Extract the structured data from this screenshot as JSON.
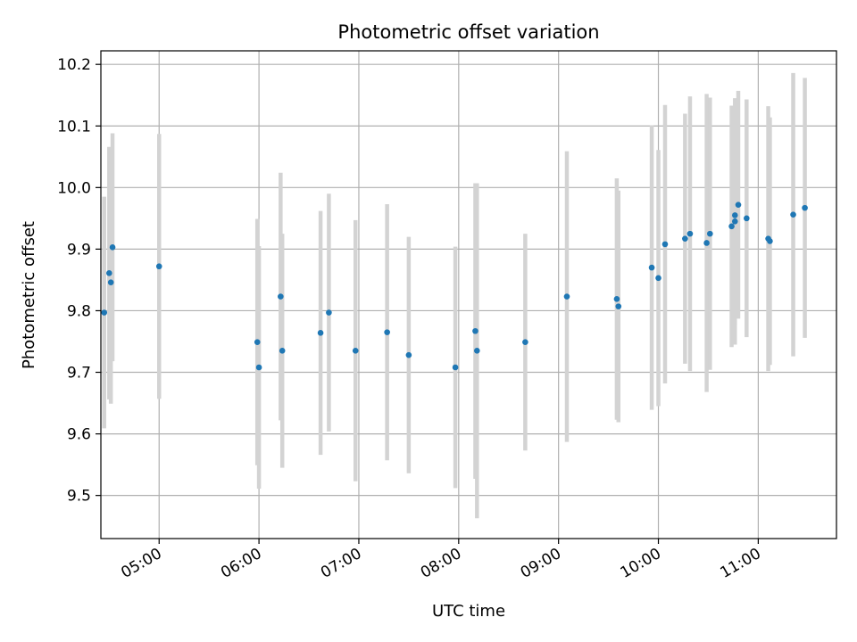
{
  "chart_data": {
    "type": "scatter",
    "title": "Photometric offset variation",
    "xlabel": "UTC time",
    "ylabel": "Photometric offset",
    "x_tick_labels": [
      "05:00",
      "06:00",
      "07:00",
      "08:00",
      "09:00",
      "10:00",
      "11:00"
    ],
    "y_tick_labels": [
      "9.5",
      "9.6",
      "9.7",
      "9.8",
      "9.9",
      "10.0",
      "10.1",
      "10.2"
    ],
    "y_ticks": [
      9.5,
      9.6,
      9.7,
      9.8,
      9.9,
      10.0,
      10.1,
      10.2
    ],
    "xlim": [
      "04:25",
      "11:47"
    ],
    "ylim": [
      9.43,
      10.222
    ],
    "grid": true,
    "colors": {
      "point": "#1f77b4",
      "error_bar": "#d3d3d3",
      "grid": "#b0b0b0"
    },
    "points": [
      {
        "x": "04:27",
        "y": 9.797,
        "err": 0.188
      },
      {
        "x": "04:30",
        "y": 9.861,
        "err": 0.205
      },
      {
        "x": "04:31",
        "y": 9.846,
        "err": 0.197
      },
      {
        "x": "04:32",
        "y": 9.903,
        "err": 0.185
      },
      {
        "x": "05:00",
        "y": 9.872,
        "err": 0.215
      },
      {
        "x": "05:59",
        "y": 9.749,
        "err": 0.2
      },
      {
        "x": "06:00",
        "y": 9.708,
        "err": 0.197
      },
      {
        "x": "06:13",
        "y": 9.823,
        "err": 0.201
      },
      {
        "x": "06:14",
        "y": 9.735,
        "err": 0.19
      },
      {
        "x": "06:37",
        "y": 9.764,
        "err": 0.198
      },
      {
        "x": "06:42",
        "y": 9.797,
        "err": 0.193
      },
      {
        "x": "06:58",
        "y": 9.735,
        "err": 0.212
      },
      {
        "x": "07:17",
        "y": 9.765,
        "err": 0.208
      },
      {
        "x": "07:30",
        "y": 9.728,
        "err": 0.192
      },
      {
        "x": "07:58",
        "y": 9.708,
        "err": 0.196
      },
      {
        "x": "08:10",
        "y": 9.767,
        "err": 0.24
      },
      {
        "x": "08:11",
        "y": 9.735,
        "err": 0.272
      },
      {
        "x": "08:40",
        "y": 9.749,
        "err": 0.176
      },
      {
        "x": "09:05",
        "y": 9.823,
        "err": 0.236
      },
      {
        "x": "09:35",
        "y": 9.819,
        "err": 0.196
      },
      {
        "x": "09:36",
        "y": 9.807,
        "err": 0.188
      },
      {
        "x": "09:56",
        "y": 9.87,
        "err": 0.231
      },
      {
        "x": "10:00",
        "y": 9.853,
        "err": 0.208
      },
      {
        "x": "10:04",
        "y": 9.908,
        "err": 0.226
      },
      {
        "x": "10:16",
        "y": 9.917,
        "err": 0.203
      },
      {
        "x": "10:19",
        "y": 9.925,
        "err": 0.223
      },
      {
        "x": "10:29",
        "y": 9.91,
        "err": 0.242
      },
      {
        "x": "10:31",
        "y": 9.925,
        "err": 0.221
      },
      {
        "x": "10:44",
        "y": 9.937,
        "err": 0.196
      },
      {
        "x": "10:46",
        "y": 9.955,
        "err": 0.178
      },
      {
        "x": "10:46",
        "y": 9.945,
        "err": 0.2
      },
      {
        "x": "10:48",
        "y": 9.972,
        "err": 0.185
      },
      {
        "x": "10:53",
        "y": 9.95,
        "err": 0.193
      },
      {
        "x": "11:06",
        "y": 9.917,
        "err": 0.215
      },
      {
        "x": "11:07",
        "y": 9.913,
        "err": 0.201
      },
      {
        "x": "11:21",
        "y": 9.956,
        "err": 0.23
      },
      {
        "x": "11:28",
        "y": 9.967,
        "err": 0.211
      }
    ]
  }
}
